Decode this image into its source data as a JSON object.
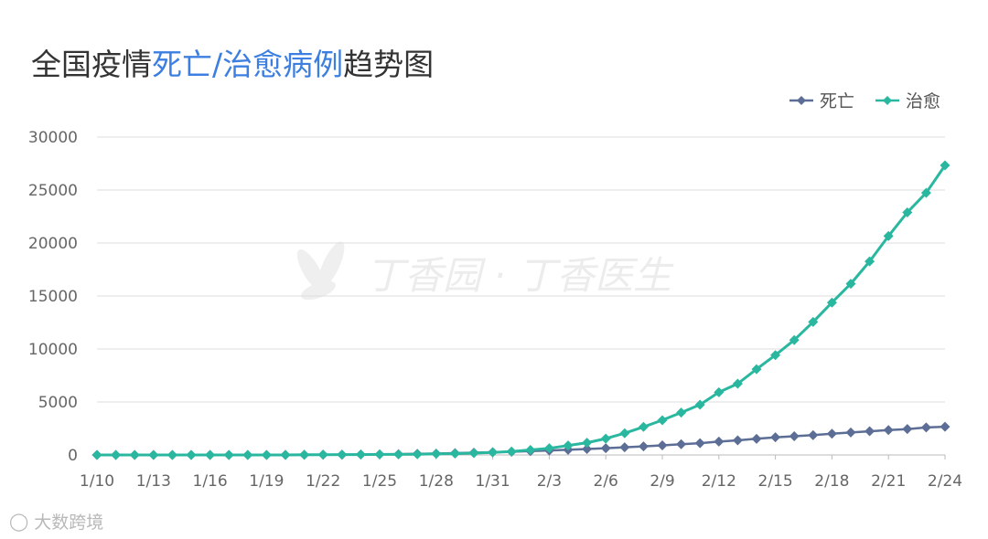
{
  "title": {
    "part1": "全国疫情",
    "highlight": "死亡/治愈病例",
    "part2": "趋势图"
  },
  "watermark": {
    "text": "丁香园 · 丁香医生",
    "source": "大数跨境"
  },
  "colors": {
    "deaths": "#5c6e96",
    "cured": "#2ab7a0",
    "title_highlight": "#3c7fe0",
    "grid": "#dddddd",
    "axis": "#bbbbbb"
  },
  "chart_data": {
    "type": "line",
    "title": "全国疫情死亡/治愈病例趋势图",
    "xlabel": "",
    "ylabel": "",
    "ylim": [
      0,
      30000
    ],
    "yticks": [
      0,
      5000,
      10000,
      15000,
      20000,
      25000,
      30000
    ],
    "xtick_labels": [
      "1/10",
      "1/13",
      "1/16",
      "1/19",
      "1/22",
      "1/25",
      "1/28",
      "1/31",
      "2/3",
      "2/6",
      "2/9",
      "2/12",
      "2/15",
      "2/18",
      "2/21",
      "2/24"
    ],
    "legend_position": "top-right",
    "grid": true,
    "x": [
      "1/10",
      "1/11",
      "1/12",
      "1/13",
      "1/14",
      "1/15",
      "1/16",
      "1/17",
      "1/18",
      "1/19",
      "1/20",
      "1/21",
      "1/22",
      "1/23",
      "1/24",
      "1/25",
      "1/26",
      "1/27",
      "1/28",
      "1/29",
      "1/30",
      "1/31",
      "2/1",
      "2/2",
      "2/3",
      "2/4",
      "2/5",
      "2/6",
      "2/7",
      "2/8",
      "2/9",
      "2/10",
      "2/11",
      "2/12",
      "2/13",
      "2/14",
      "2/15",
      "2/16",
      "2/17",
      "2/18",
      "2/19",
      "2/20",
      "2/21",
      "2/22",
      "2/23",
      "2/24"
    ],
    "series": [
      {
        "name": "死亡",
        "values": [
          1,
          1,
          1,
          1,
          1,
          2,
          2,
          3,
          3,
          4,
          6,
          9,
          17,
          25,
          41,
          56,
          80,
          106,
          132,
          170,
          213,
          259,
          304,
          361,
          425,
          490,
          563,
          636,
          722,
          811,
          908,
          1016,
          1113,
          1259,
          1380,
          1523,
          1665,
          1770,
          1868,
          2004,
          2118,
          2236,
          2345,
          2442,
          2592,
          2663
        ]
      },
      {
        "name": "治愈",
        "values": [
          0,
          0,
          0,
          0,
          0,
          0,
          0,
          0,
          0,
          0,
          0,
          25,
          28,
          34,
          38,
          49,
          51,
          60,
          103,
          124,
          171,
          243,
          328,
          475,
          632,
          892,
          1153,
          1540,
          2050,
          2649,
          3281,
          3996,
          4740,
          5911,
          6723,
          8096,
          9419,
          10844,
          12552,
          14376,
          16155,
          18264,
          20659,
          22888,
          24734,
          27323
        ]
      }
    ]
  }
}
